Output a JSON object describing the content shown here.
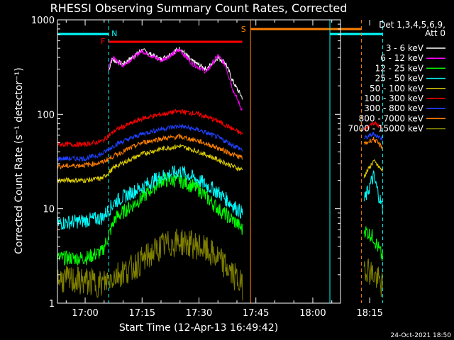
{
  "chart_data": {
    "type": "line",
    "title": "RHESSI Observing Summary Count Rates, Corrected",
    "xlabel": "Start Time (12-Apr-13 16:49:42)",
    "ylabel": "Corrected Count Rate (s⁻¹ detector⁻¹)",
    "yscale": "log",
    "ylim": [
      1,
      1000
    ],
    "xlim_min": [
      -7.3,
      67.3
    ],
    "x_ticks": [
      {
        "v": 0,
        "label": "17:00"
      },
      {
        "v": 15,
        "label": "17:15"
      },
      {
        "v": 30,
        "label": "17:30"
      },
      {
        "v": 45,
        "label": "17:45"
      },
      {
        "v": 60,
        "label": "18:00"
      },
      {
        "v": 75,
        "label": "18:15"
      }
    ],
    "y_ticks": [
      {
        "v": 1,
        "label": "1"
      },
      {
        "v": 10,
        "label": "10"
      },
      {
        "v": 100,
        "label": "100"
      },
      {
        "v": 1000,
        "label": "1000"
      }
    ],
    "legend_header": [
      "Det 1,3,4,5,6,9,",
      "Att 0"
    ],
    "legend_position": "right",
    "footer_date": "24-Oct-2021 18:50",
    "markers": [
      {
        "label": "N",
        "type": "night",
        "color": "#00ffff",
        "ranges": [
          [
            -7.3,
            6.2
          ],
          [
            64.5,
            78.4
          ]
        ]
      },
      {
        "label": "F",
        "type": "flare",
        "color": "#ff0000",
        "ranges": [
          [
            6.2,
            41.4
          ]
        ]
      },
      {
        "label": "S",
        "type": "saa",
        "color": "#ff8000",
        "ranges": [
          [
            43.6,
            72.8
          ]
        ]
      }
    ],
    "vlines": [
      {
        "x": 6.2,
        "color": "#00ffff",
        "dash": true
      },
      {
        "x": 43.6,
        "color": "#ff8000",
        "dash": false
      },
      {
        "x": 64.5,
        "color": "#00ffff",
        "dash": false
      },
      {
        "x": 72.8,
        "color": "#ff8000",
        "dash": true
      },
      {
        "x": 78.4,
        "color": "#00ffff",
        "dash": true
      }
    ],
    "series": [
      {
        "name": "3 - 6 keV",
        "color": "#ffffff",
        "x": [
          6.2,
          7,
          10,
          15,
          20,
          25,
          28,
          32,
          35,
          37,
          39,
          41.4
        ],
        "values": [
          290,
          380,
          340,
          480,
          380,
          500,
          370,
          300,
          400,
          350,
          220,
          150
        ]
      },
      {
        "name": "6 - 12 keV",
        "color": "#ff00ff",
        "x": [
          6.2,
          7,
          10,
          15,
          20,
          25,
          28,
          32,
          35,
          37,
          39,
          41.4
        ],
        "values": [
          300,
          400,
          330,
          470,
          370,
          480,
          350,
          280,
          420,
          330,
          180,
          110
        ]
      },
      {
        "name": "12 - 25 keV",
        "color": "#00ff00",
        "x": [
          -7.3,
          0,
          4.5,
          8,
          15,
          20,
          25,
          30,
          35,
          40,
          41.4,
          73.5,
          76,
          78.4
        ],
        "values": [
          3,
          3,
          3.5,
          8,
          13,
          20,
          20,
          16,
          10,
          7,
          6,
          6,
          5,
          3
        ]
      },
      {
        "name": "25 - 50 keV",
        "color": "#00ffff",
        "x": [
          -7.3,
          0,
          4.5,
          8,
          15,
          20,
          25,
          30,
          35,
          40,
          41.4,
          73.5,
          76,
          78.4
        ],
        "values": [
          7,
          7.5,
          8,
          12,
          17,
          22,
          25,
          20,
          15,
          10,
          9,
          12,
          22,
          10
        ]
      },
      {
        "name": "50 - 100 keV",
        "color": "#e0d000",
        "x": [
          -7.3,
          0,
          4.5,
          8,
          15,
          20,
          25,
          30,
          35,
          40,
          41.4,
          73.5,
          76,
          78.4
        ],
        "values": [
          20,
          20,
          21,
          28,
          38,
          43,
          46,
          40,
          33,
          27,
          26,
          22,
          32,
          25
        ]
      },
      {
        "name": "100 - 300 keV",
        "color": "#ff0000",
        "x": [
          -7.3,
          0,
          4.5,
          8,
          15,
          20,
          25,
          30,
          35,
          40,
          41.4,
          73.5,
          76,
          78.4
        ],
        "values": [
          48,
          48,
          52,
          68,
          90,
          100,
          108,
          100,
          85,
          66,
          62,
          68,
          82,
          70
        ]
      },
      {
        "name": "300 - 800 keV",
        "color": "#2040ff",
        "x": [
          -7.3,
          0,
          4.5,
          8,
          15,
          20,
          25,
          30,
          35,
          40,
          41.4,
          73.5,
          76,
          78.4
        ],
        "values": [
          34,
          34,
          38,
          48,
          62,
          70,
          75,
          68,
          57,
          45,
          42,
          55,
          62,
          55
        ]
      },
      {
        "name": "800 - 7000 keV",
        "color": "#ff8000",
        "x": [
          -7.3,
          0,
          4.5,
          8,
          15,
          20,
          25,
          30,
          35,
          40,
          41.4,
          73.5,
          76,
          78.4
        ],
        "values": [
          28,
          29,
          31,
          37,
          50,
          55,
          58,
          52,
          44,
          36,
          35,
          48,
          55,
          44
        ]
      },
      {
        "name": "7000 - 15000 keV",
        "color": "#808000",
        "x": [
          -7.3,
          0,
          4.5,
          8,
          12,
          16,
          20,
          25,
          30,
          35,
          40,
          41.4,
          73.5,
          76,
          78.4
        ],
        "values": [
          1.8,
          1.7,
          1.6,
          2.0,
          2.3,
          3.0,
          4.0,
          4.5,
          4.0,
          3.0,
          1.8,
          1.5,
          2.5,
          2.0,
          1.5
        ]
      }
    ]
  }
}
